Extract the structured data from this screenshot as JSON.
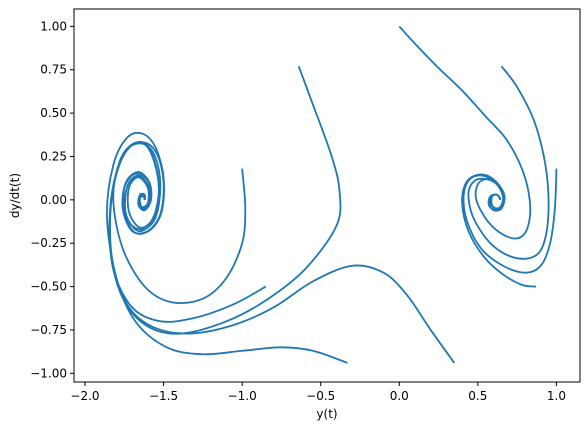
{
  "chart_data": {
    "type": "line",
    "title": "",
    "xlabel": "y(t)",
    "ylabel": "dy/dt(t)",
    "xlim": [
      -2.07,
      1.15
    ],
    "ylim": [
      -1.05,
      1.1
    ],
    "x_ticks": [
      -2.0,
      -1.5,
      -1.0,
      -0.5,
      0.0,
      0.5,
      1.0
    ],
    "x_tick_labels": [
      "−2.0",
      "−1.5",
      "−1.0",
      "−0.5",
      "0.0",
      "0.5",
      "1.0"
    ],
    "y_ticks": [
      -1.0,
      -0.75,
      -0.5,
      -0.25,
      0.0,
      0.25,
      0.5,
      0.75,
      1.0
    ],
    "y_tick_labels": [
      "−1.00",
      "−0.75",
      "−0.50",
      "−0.25",
      "0.00",
      "0.25",
      "0.50",
      "0.75",
      "1.00"
    ],
    "grid": false,
    "legend": "none",
    "line_color": "#1f77b4",
    "series": [
      {
        "points": [
          [
            -0.85,
            -0.5
          ],
          [
            -1.05,
            -0.6
          ],
          [
            -1.3,
            -0.68
          ],
          [
            -1.52,
            -0.7
          ],
          [
            -1.7,
            -0.62
          ],
          [
            -1.82,
            -0.4
          ],
          [
            -1.84,
            -0.1
          ],
          [
            -1.8,
            0.15
          ],
          [
            -1.72,
            0.3
          ],
          [
            -1.62,
            0.33
          ],
          [
            -1.54,
            0.26
          ],
          [
            -1.5,
            0.1
          ],
          [
            -1.52,
            -0.08
          ],
          [
            -1.6,
            -0.18
          ],
          [
            -1.7,
            -0.18
          ],
          [
            -1.76,
            -0.05
          ],
          [
            -1.74,
            0.1
          ],
          [
            -1.66,
            0.16
          ],
          [
            -1.59,
            0.1
          ],
          [
            -1.58,
            0.0
          ],
          [
            -1.62,
            -0.06
          ],
          [
            -1.66,
            -0.03
          ],
          [
            -1.65,
            0.03
          ],
          [
            -1.62,
            0.03
          ],
          [
            -1.62,
            0.0
          ]
        ]
      },
      {
        "points": [
          [
            -0.64,
            0.77
          ],
          [
            -0.55,
            0.55
          ],
          [
            -0.43,
            0.25
          ],
          [
            -0.38,
            0.05
          ],
          [
            -0.4,
            -0.15
          ],
          [
            -0.6,
            -0.4
          ],
          [
            -0.85,
            -0.58
          ],
          [
            -1.1,
            -0.7
          ],
          [
            -1.38,
            -0.77
          ],
          [
            -1.58,
            -0.74
          ],
          [
            -1.74,
            -0.6
          ],
          [
            -1.83,
            -0.35
          ],
          [
            -1.84,
            -0.05
          ],
          [
            -1.79,
            0.18
          ],
          [
            -1.71,
            0.31
          ],
          [
            -1.62,
            0.32
          ],
          [
            -1.56,
            0.22
          ],
          [
            -1.53,
            0.05
          ],
          [
            -1.57,
            -0.12
          ],
          [
            -1.66,
            -0.18
          ],
          [
            -1.74,
            -0.08
          ],
          [
            -1.73,
            0.08
          ],
          [
            -1.66,
            0.14
          ],
          [
            -1.6,
            0.07
          ],
          [
            -1.6,
            -0.02
          ],
          [
            -1.64,
            -0.05
          ],
          [
            -1.66,
            0.0
          ],
          [
            -1.63,
            0.03
          ],
          [
            -1.62,
            0.0
          ]
        ]
      },
      {
        "points": [
          [
            -0.33,
            -0.94
          ],
          [
            -0.55,
            -0.87
          ],
          [
            -0.75,
            -0.85
          ],
          [
            -1.0,
            -0.87
          ],
          [
            -1.25,
            -0.89
          ],
          [
            -1.48,
            -0.85
          ],
          [
            -1.68,
            -0.7
          ],
          [
            -1.8,
            -0.45
          ],
          [
            -1.86,
            -0.1
          ],
          [
            -1.82,
            0.2
          ],
          [
            -1.73,
            0.36
          ],
          [
            -1.63,
            0.38
          ],
          [
            -1.55,
            0.3
          ],
          [
            -1.5,
            0.13
          ],
          [
            -1.51,
            -0.06
          ],
          [
            -1.58,
            -0.17
          ],
          [
            -1.68,
            -0.19
          ],
          [
            -1.75,
            -0.08
          ],
          [
            -1.75,
            0.07
          ],
          [
            -1.68,
            0.15
          ],
          [
            -1.6,
            0.11
          ],
          [
            -1.58,
            0.01
          ],
          [
            -1.61,
            -0.05
          ],
          [
            -1.65,
            -0.04
          ],
          [
            -1.65,
            0.02
          ],
          [
            -1.62,
            0.02
          ],
          [
            -1.62,
            0.0
          ]
        ]
      },
      {
        "points": [
          [
            -1.0,
            0.18
          ],
          [
            -0.98,
            -0.05
          ],
          [
            -1.0,
            -0.25
          ],
          [
            -1.1,
            -0.45
          ],
          [
            -1.25,
            -0.57
          ],
          [
            -1.45,
            -0.59
          ],
          [
            -1.62,
            -0.5
          ],
          [
            -1.76,
            -0.28
          ],
          [
            -1.82,
            0.0
          ],
          [
            -1.78,
            0.22
          ],
          [
            -1.7,
            0.32
          ],
          [
            -1.61,
            0.32
          ],
          [
            -1.55,
            0.2
          ],
          [
            -1.53,
            0.04
          ],
          [
            -1.57,
            -0.11
          ],
          [
            -1.65,
            -0.16
          ],
          [
            -1.72,
            -0.07
          ],
          [
            -1.72,
            0.07
          ],
          [
            -1.66,
            0.13
          ],
          [
            -1.6,
            0.07
          ],
          [
            -1.6,
            -0.02
          ],
          [
            -1.64,
            -0.04
          ],
          [
            -1.65,
            0.01
          ],
          [
            -1.62,
            0.02
          ],
          [
            -1.62,
            0.0
          ]
        ]
      },
      {
        "points": [
          [
            0.35,
            -0.94
          ],
          [
            0.2,
            -0.75
          ],
          [
            0.05,
            -0.55
          ],
          [
            -0.1,
            -0.42
          ],
          [
            -0.3,
            -0.38
          ],
          [
            -0.55,
            -0.47
          ],
          [
            -0.8,
            -0.62
          ],
          [
            -1.05,
            -0.72
          ],
          [
            -1.32,
            -0.77
          ],
          [
            -1.55,
            -0.74
          ],
          [
            -1.72,
            -0.62
          ],
          [
            -1.82,
            -0.38
          ],
          [
            -1.84,
            -0.08
          ],
          [
            -1.8,
            0.16
          ],
          [
            -1.72,
            0.3
          ],
          [
            -1.62,
            0.32
          ],
          [
            -1.55,
            0.24
          ],
          [
            -1.52,
            0.08
          ],
          [
            -1.55,
            -0.1
          ],
          [
            -1.63,
            -0.17
          ],
          [
            -1.72,
            -0.13
          ],
          [
            -1.75,
            0.0
          ],
          [
            -1.71,
            0.11
          ],
          [
            -1.64,
            0.13
          ],
          [
            -1.59,
            0.06
          ],
          [
            -1.6,
            -0.03
          ],
          [
            -1.64,
            -0.05
          ],
          [
            -1.66,
            0.0
          ],
          [
            -1.63,
            0.03
          ],
          [
            -1.62,
            0.0
          ]
        ]
      },
      {
        "points": [
          [
            0.0,
            1.0
          ],
          [
            0.1,
            0.9
          ],
          [
            0.25,
            0.76
          ],
          [
            0.4,
            0.63
          ],
          [
            0.55,
            0.48
          ],
          [
            0.68,
            0.35
          ],
          [
            0.78,
            0.18
          ],
          [
            0.83,
            0.0
          ],
          [
            0.82,
            -0.15
          ],
          [
            0.76,
            -0.22
          ],
          [
            0.66,
            -0.2
          ],
          [
            0.56,
            -0.12
          ],
          [
            0.49,
            0.0
          ],
          [
            0.5,
            0.09
          ],
          [
            0.56,
            0.12
          ],
          [
            0.62,
            0.1
          ],
          [
            0.66,
            0.03
          ],
          [
            0.65,
            -0.03
          ],
          [
            0.62,
            -0.05
          ],
          [
            0.59,
            -0.03
          ],
          [
            0.59,
            0.02
          ],
          [
            0.62,
            0.03
          ],
          [
            0.64,
            0.01
          ],
          [
            0.64,
            0.0
          ]
        ]
      },
      {
        "points": [
          [
            0.65,
            0.77
          ],
          [
            0.75,
            0.65
          ],
          [
            0.86,
            0.45
          ],
          [
            0.93,
            0.2
          ],
          [
            0.95,
            -0.05
          ],
          [
            0.92,
            -0.25
          ],
          [
            0.85,
            -0.33
          ],
          [
            0.72,
            -0.33
          ],
          [
            0.58,
            -0.25
          ],
          [
            0.47,
            -0.1
          ],
          [
            0.44,
            0.04
          ],
          [
            0.48,
            0.11
          ],
          [
            0.55,
            0.12
          ],
          [
            0.62,
            0.09
          ],
          [
            0.66,
            0.02
          ],
          [
            0.65,
            -0.04
          ],
          [
            0.61,
            -0.05
          ],
          [
            0.58,
            -0.02
          ],
          [
            0.59,
            0.02
          ],
          [
            0.62,
            0.03
          ],
          [
            0.64,
            0.01
          ],
          [
            0.64,
            0.0
          ]
        ]
      },
      {
        "points": [
          [
            1.0,
            0.18
          ],
          [
            0.99,
            -0.05
          ],
          [
            0.96,
            -0.25
          ],
          [
            0.9,
            -0.38
          ],
          [
            0.8,
            -0.42
          ],
          [
            0.66,
            -0.38
          ],
          [
            0.52,
            -0.28
          ],
          [
            0.43,
            -0.12
          ],
          [
            0.41,
            0.03
          ],
          [
            0.45,
            0.12
          ],
          [
            0.53,
            0.14
          ],
          [
            0.61,
            0.1
          ],
          [
            0.66,
            0.03
          ],
          [
            0.65,
            -0.04
          ],
          [
            0.61,
            -0.06
          ],
          [
            0.57,
            -0.03
          ],
          [
            0.58,
            0.02
          ],
          [
            0.62,
            0.03
          ],
          [
            0.64,
            0.01
          ],
          [
            0.64,
            0.0
          ]
        ]
      },
      {
        "points": [
          [
            0.87,
            -0.5
          ],
          [
            0.78,
            -0.49
          ],
          [
            0.66,
            -0.43
          ],
          [
            0.54,
            -0.33
          ],
          [
            0.44,
            -0.18
          ],
          [
            0.4,
            -0.02
          ],
          [
            0.42,
            0.09
          ],
          [
            0.48,
            0.14
          ],
          [
            0.56,
            0.14
          ],
          [
            0.63,
            0.09
          ],
          [
            0.67,
            0.02
          ],
          [
            0.65,
            -0.05
          ],
          [
            0.6,
            -0.06
          ],
          [
            0.57,
            -0.02
          ],
          [
            0.58,
            0.02
          ],
          [
            0.62,
            0.03
          ],
          [
            0.64,
            0.01
          ],
          [
            0.64,
            0.0
          ]
        ]
      }
    ]
  }
}
